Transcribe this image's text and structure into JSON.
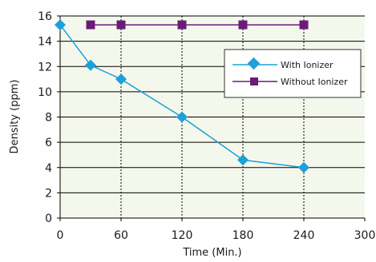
{
  "chart_data": {
    "type": "line",
    "title": "",
    "xlabel": "Time (Min.)",
    "ylabel": "Density (ppm)",
    "xlim": [
      0,
      300
    ],
    "ylim": [
      0,
      16
    ],
    "x_ticks": [
      0,
      60,
      120,
      180,
      240,
      300
    ],
    "y_ticks": [
      0,
      2,
      4,
      6,
      8,
      10,
      12,
      14,
      16
    ],
    "x_tick_labels": [
      "0",
      "60",
      "120",
      "180",
      "240",
      "300"
    ],
    "y_tick_labels": [
      "0",
      "2",
      "4",
      "6",
      "8",
      "10",
      "12",
      "14",
      "16"
    ],
    "vertical_dashed_gridlines_at": [
      60,
      120,
      180,
      240
    ],
    "horizontal_gridlines": true,
    "legend_position": "top-right",
    "series": [
      {
        "name": "With Ionizer",
        "marker": "diamond",
        "color": "#1ea0d8",
        "x": [
          0,
          30,
          60,
          120,
          180,
          240
        ],
        "y": [
          15.3,
          12.1,
          11.0,
          8.0,
          4.6,
          4.0
        ]
      },
      {
        "name": "Without Ionizer",
        "marker": "square",
        "color": "#6a1b7a",
        "x": [
          30,
          60,
          120,
          180,
          240
        ],
        "y": [
          15.3,
          15.3,
          15.3,
          15.3,
          15.3
        ]
      }
    ]
  },
  "colors": {
    "plot_background": "#f4f8ec",
    "gridline": "#000000",
    "axis": "#000000"
  }
}
